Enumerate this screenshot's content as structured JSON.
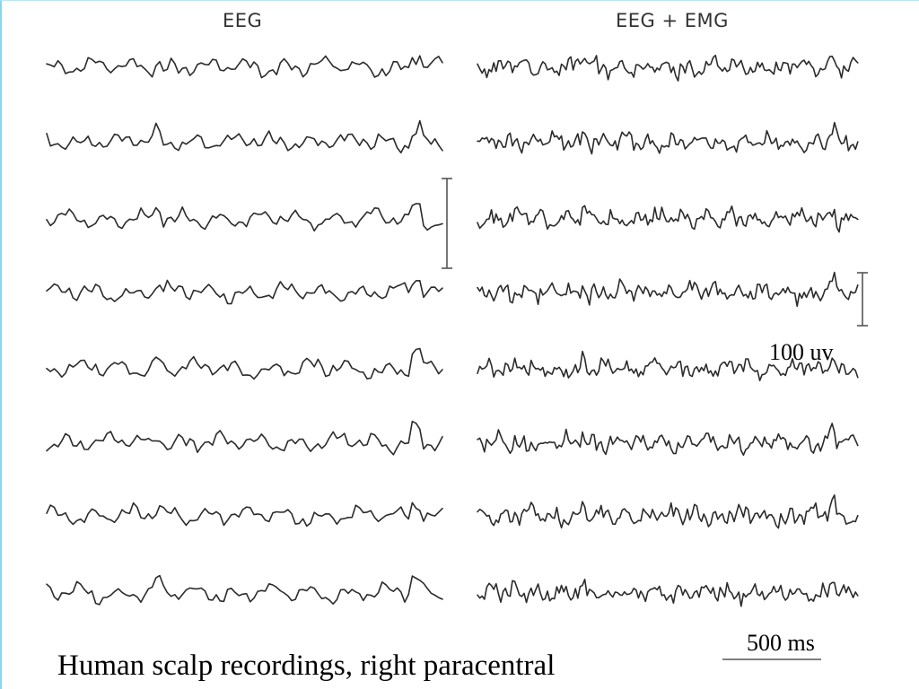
{
  "figure": {
    "left_column_title": "EEG",
    "right_column_title": "EEG + EMG",
    "left_trace_count": 8,
    "right_trace_count": 8,
    "amplitude_scale_label": "100 uv",
    "time_scale_label": "500 ms",
    "caption": "Human scalp recordings, right paracentral"
  },
  "colors": {
    "trace": "#2b2b2b",
    "slide_border": "#8fd3ea",
    "background": "#ffffff"
  }
}
